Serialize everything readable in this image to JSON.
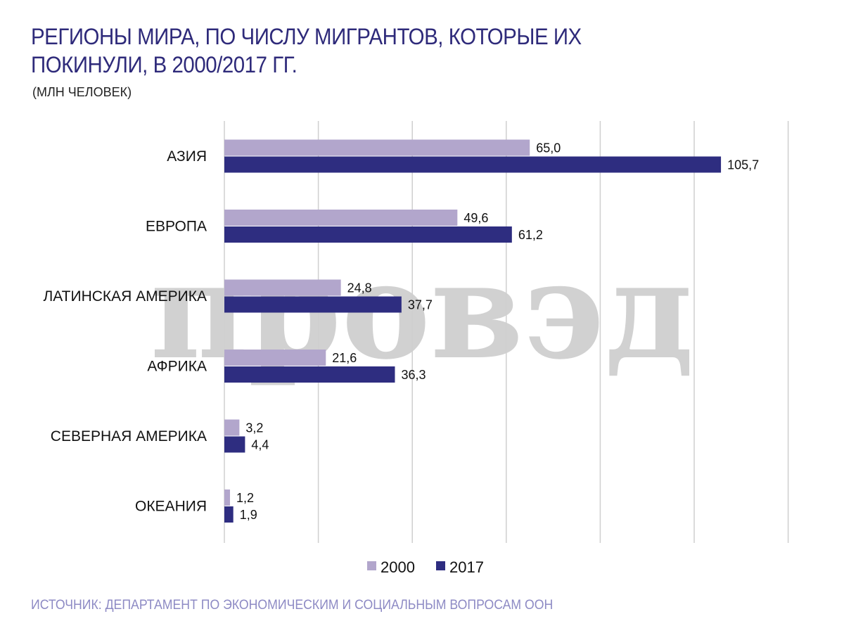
{
  "title": "РЕГИОНЫ МИРА, ПО ЧИСЛУ МИГРАНТОВ, КОТОРЫЕ ИХ ПОКИНУЛИ, В 2000/2017 ГГ.",
  "subtitle": "(МЛН ЧЕЛОВЕК)",
  "source": "ИСТОЧНИК: ДЕПАРТАМЕНТ ПО ЭКОНОМИЧЕСКИМ И СОЦИАЛЬНЫМ ВОПРОСАМ ООН",
  "watermark": "провэд",
  "colors": {
    "s2000": "#b2a6cc",
    "s2017": "#2e2d80",
    "grid": "#cfcfcf"
  },
  "chart_data": {
    "type": "bar",
    "orientation": "horizontal",
    "categories": [
      "АЗИЯ",
      "ЕВРОПА",
      "ЛАТИНСКАЯ АМЕРИКА",
      "АФРИКА",
      "СЕВЕРНАЯ АМЕРИКА",
      "ОКЕАНИЯ"
    ],
    "series": [
      {
        "name": "2000",
        "values": [
          65.0,
          49.6,
          24.8,
          21.6,
          3.2,
          1.2
        ],
        "labels": [
          "65,0",
          "49,6",
          "24,8",
          "21,6",
          "3,2",
          "1,2"
        ]
      },
      {
        "name": "2017",
        "values": [
          105.7,
          61.2,
          37.7,
          36.3,
          4.4,
          1.9
        ],
        "labels": [
          "105,7",
          "61,2",
          "37,7",
          "36,3",
          "4,4",
          "1,9"
        ]
      }
    ],
    "xlim": [
      0,
      120
    ],
    "grid": true,
    "legend": "bottom"
  }
}
